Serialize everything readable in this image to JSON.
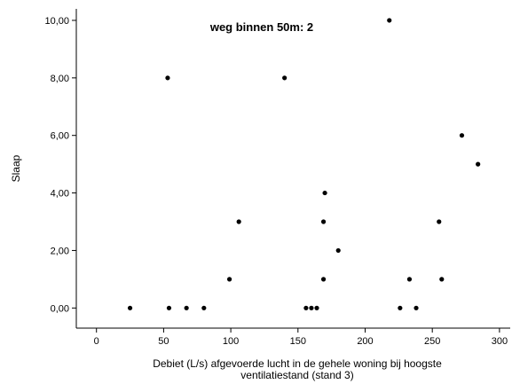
{
  "chart_data": {
    "type": "scatter",
    "title": "weg binnen 50m: 2",
    "xlabel": [
      "Debiet (L/s) afgevoerde lucht in de gehele woning bij hoogste",
      "ventilatiestand (stand 3)"
    ],
    "ylabel": "Slaap",
    "xlim": [
      -15,
      308
    ],
    "ylim": [
      -0.7,
      10.4
    ],
    "xticks": [
      0,
      50,
      100,
      150,
      200,
      250,
      300
    ],
    "xtick_labels": [
      "0",
      "50",
      "100",
      "150",
      "200",
      "250",
      "300"
    ],
    "yticks": [
      0,
      2,
      4,
      6,
      8,
      10
    ],
    "ytick_labels": [
      "0,00",
      "2,00",
      "4,00",
      "6,00",
      "8,00",
      "10,00"
    ],
    "grid": false,
    "marker_color": "#000000",
    "points": [
      {
        "x": 25,
        "y": 0
      },
      {
        "x": 54,
        "y": 0
      },
      {
        "x": 67,
        "y": 0
      },
      {
        "x": 80,
        "y": 0
      },
      {
        "x": 156,
        "y": 0
      },
      {
        "x": 160,
        "y": 0
      },
      {
        "x": 164,
        "y": 0
      },
      {
        "x": 226,
        "y": 0
      },
      {
        "x": 238,
        "y": 0
      },
      {
        "x": 99,
        "y": 1
      },
      {
        "x": 169,
        "y": 1
      },
      {
        "x": 233,
        "y": 1
      },
      {
        "x": 257,
        "y": 1
      },
      {
        "x": 180,
        "y": 2
      },
      {
        "x": 106,
        "y": 3
      },
      {
        "x": 169,
        "y": 3
      },
      {
        "x": 255,
        "y": 3
      },
      {
        "x": 170,
        "y": 4
      },
      {
        "x": 284,
        "y": 5
      },
      {
        "x": 272,
        "y": 6
      },
      {
        "x": 53,
        "y": 8
      },
      {
        "x": 140,
        "y": 8
      },
      {
        "x": 218,
        "y": 10
      }
    ]
  }
}
